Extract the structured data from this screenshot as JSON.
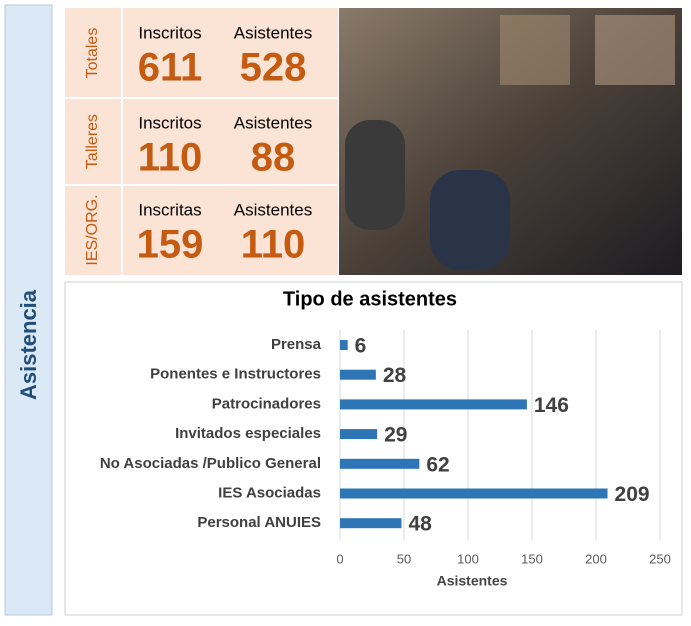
{
  "sidebar_label": "Asistencia",
  "stats": [
    {
      "label": "Totales",
      "columns": [
        {
          "label": "Inscritos",
          "value": 611
        },
        {
          "label": "Asistentes",
          "value": 528
        }
      ]
    },
    {
      "label": "Talleres",
      "columns": [
        {
          "label": "Inscritos",
          "value": 110
        },
        {
          "label": "Asistentes",
          "value": 88
        }
      ]
    },
    {
      "label": "IES/ORG.",
      "columns": [
        {
          "label": "Inscritas",
          "value": 159
        },
        {
          "label": "Asistentes",
          "value": 110
        }
      ]
    }
  ],
  "chart_data": {
    "type": "bar",
    "orientation": "horizontal",
    "title": "Tipo de asistentes",
    "x_label": "Asistentes",
    "categories": [
      "Prensa",
      "Ponentes e Instructores",
      "Patrocinadores",
      "Invitados especiales",
      "No Asociadas /Publico General",
      "IES Asociadas",
      "Personal  ANUIES"
    ],
    "values": [
      6,
      28,
      146,
      29,
      62,
      209,
      48
    ],
    "color": "#2e75b6",
    "xlim": [
      0,
      250
    ],
    "xticks": [
      0,
      50,
      100,
      150,
      200,
      250
    ],
    "grid": true
  }
}
